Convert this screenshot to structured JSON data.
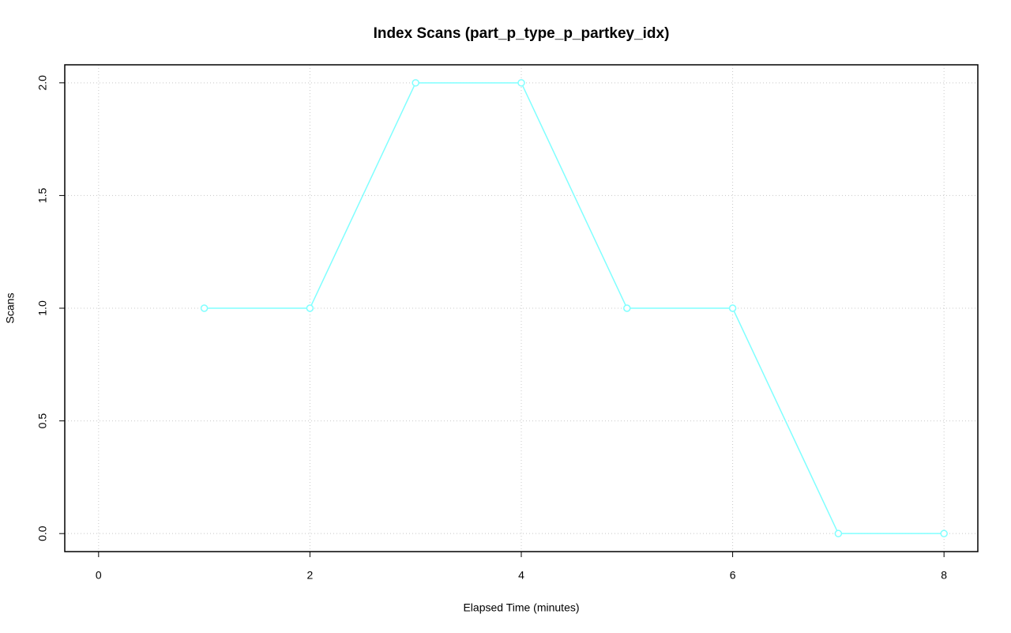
{
  "chart_data": {
    "type": "line",
    "title": "Index Scans (part_p_type_p_partkey_idx)",
    "x_label": "Elapsed Time (minutes)",
    "y_label": "Scans",
    "x": [
      1,
      2,
      3,
      4,
      5,
      6,
      7,
      8
    ],
    "values": [
      1,
      1,
      2,
      2,
      1,
      1,
      0,
      0
    ],
    "color": "#80ffff",
    "xlim": [
      -0.32,
      8.32
    ],
    "xticks": [
      0,
      2,
      4,
      6,
      8
    ],
    "ylim": [
      -0.08,
      2.08
    ],
    "yticks": [
      {
        "value": 0,
        "label": "0.0"
      },
      {
        "value": 0.5,
        "label": "0.5"
      },
      {
        "value": 1,
        "label": "1.0"
      },
      {
        "value": 1.5,
        "label": "1.5"
      },
      {
        "value": 2,
        "label": "2.0"
      }
    ],
    "grid": true
  }
}
